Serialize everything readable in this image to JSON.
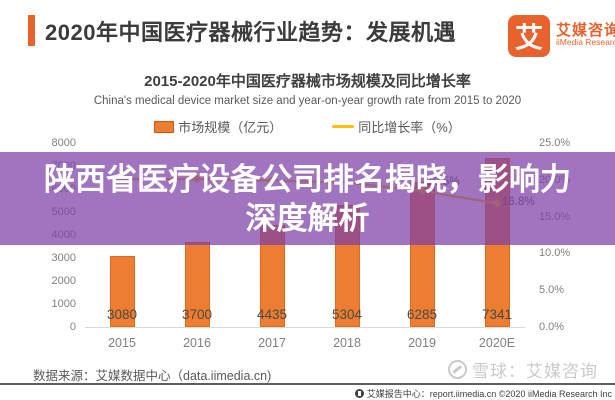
{
  "header": {
    "title": "2020年中国医疗器械行业趋势：发展机遇",
    "logo": {
      "glyph": "艾",
      "name_cn": "艾媒咨询",
      "name_en": "iiMedia Research"
    }
  },
  "chart": {
    "title": "2015-2020年中国医疗器械市场规模及同比增长率",
    "subtitle": "China's medical device market size and year-on-year growth rate from 2015 to 2020",
    "legend": [
      {
        "label": "市场规模（亿元）",
        "type": "bar",
        "color": "#ED7D31"
      },
      {
        "label": "同比增长率（%）",
        "type": "line",
        "color": "#FFC000"
      }
    ]
  },
  "chart_data": {
    "type": "bar+line",
    "categories": [
      "2015",
      "2016",
      "2017",
      "2018",
      "2019",
      "2020E"
    ],
    "series": [
      {
        "name": "市场规模（亿元）",
        "type": "bar",
        "color": "#ED7D31",
        "values": [
          3080,
          3700,
          4435,
          5304,
          6285,
          7341
        ]
      },
      {
        "name": "同比增长率（%）",
        "type": "line",
        "color": "#FFC000",
        "values": [
          20.1,
          20.1,
          19.9,
          19.6,
          18.5,
          16.8
        ],
        "visible_point_labels": [
          null,
          null,
          null,
          null,
          "18.5%",
          "16.8%"
        ]
      }
    ],
    "left_axis": {
      "min": 0,
      "max": 8000,
      "ticks": [
        "8000",
        "7000",
        "6000",
        "5000",
        "4000",
        "3000",
        "2000",
        "1000",
        "0"
      ]
    },
    "right_axis": {
      "min": 0,
      "max": 25,
      "ticks": [
        "25.0%",
        "20.0%",
        "15.0%",
        "10.0%",
        "5.0%",
        "0.0%"
      ]
    },
    "grid": false,
    "legend_position": "top",
    "title": "2015-2020年中国医疗器械市场规模及同比增长率",
    "xlabel": "",
    "ylabel_left": "亿元",
    "ylabel_right": "%"
  },
  "overlay": {
    "line1": "陕西省医疗设备公司排名揭晓，影响力",
    "line2": "深度解析",
    "background": "rgba(125,63,168,0.72)",
    "text_color": "#ffffff"
  },
  "footer": {
    "source": "数据来源：艾媒数据中心（data.iimedia.cn)",
    "watermark": "雪球：艾媒咨询",
    "report_line": "艾媒报告中心：report.iimedia.cn ©2020 iiMedia Research Inc"
  },
  "colors": {
    "accent_orange": "#E8622D",
    "bar_orange": "#ED7D31",
    "line_yellow": "#FFC000",
    "overlay_purple": "#7D3FA8"
  }
}
